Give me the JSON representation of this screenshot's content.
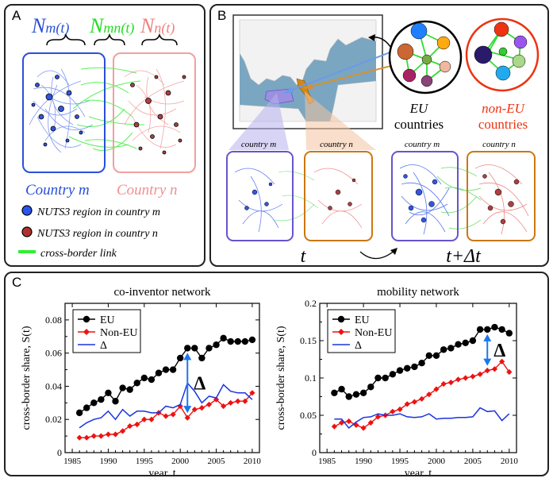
{
  "panel_a": {
    "label": "A",
    "nm": {
      "letter": "N",
      "sub": "m(t)"
    },
    "nmn": {
      "letter": "N",
      "sub": "mn(t)"
    },
    "nn": {
      "letter": "N",
      "sub": "n(t)"
    },
    "country_m": "Country m",
    "country_n": "Country n",
    "legend": {
      "region_m": "NUTS3 region in country m",
      "region_n": "NUTS3 region in country n",
      "cross_link": "cross-border link"
    },
    "colors": {
      "blue": "#2a50d8",
      "red": "#e87878",
      "green": "#33ee33"
    }
  },
  "panel_b": {
    "label": "B",
    "eu_caption_1": "EU",
    "eu_caption_2": "countries",
    "noneu_caption_1": "non-EU",
    "noneu_caption_2": "countries",
    "country_m": "country m",
    "country_n": "country n",
    "time_t": "t",
    "time_t2": "t+Δt"
  },
  "panel_c": {
    "label": "C",
    "delta_marker": "Δ",
    "charts": [
      {
        "title": "co-inventor network",
        "xlabel": "year, t",
        "ylabel": "cross-border share, S(t)",
        "ylim": [
          0,
          0.09
        ],
        "yticks": [
          "0",
          "0.02",
          "0.04",
          "0.06",
          "0.08"
        ],
        "xticks": [
          "1985",
          "1990",
          "1995",
          "2000",
          "2005",
          "2010"
        ],
        "legend": [
          "EU",
          "Non-EU",
          "Δ"
        ],
        "delta_year": 2001
      },
      {
        "title": "mobility network",
        "xlabel": "year, t",
        "ylabel": "cross-border share, S(t)",
        "ylim": [
          0,
          0.2
        ],
        "yticks": [
          "0",
          "0.05",
          "0.1",
          "0.15",
          "0.2"
        ],
        "xticks": [
          "1985",
          "1990",
          "1995",
          "2000",
          "2005",
          "2010"
        ],
        "legend": [
          "EU",
          "Non-EU",
          "Δ"
        ],
        "delta_year": 2007
      }
    ]
  },
  "chart_data": [
    {
      "type": "line",
      "title": "co-inventor network",
      "xlabel": "year, t",
      "ylabel": "cross-border share, S(t)",
      "xlim": [
        1984,
        2011
      ],
      "ylim": [
        0,
        0.09
      ],
      "x": [
        1986,
        1987,
        1988,
        1989,
        1990,
        1991,
        1992,
        1993,
        1994,
        1995,
        1996,
        1997,
        1998,
        1999,
        2000,
        2001,
        2002,
        2003,
        2004,
        2005,
        2006,
        2007,
        2008,
        2009,
        2010
      ],
      "series": [
        {
          "name": "EU",
          "color": "#000000",
          "values": [
            0.024,
            0.027,
            0.03,
            0.032,
            0.036,
            0.031,
            0.039,
            0.038,
            0.042,
            0.045,
            0.044,
            0.048,
            0.05,
            0.05,
            0.057,
            0.063,
            0.063,
            0.057,
            0.063,
            0.065,
            0.069,
            0.067,
            0.067,
            0.067,
            0.068
          ]
        },
        {
          "name": "Non-EU",
          "color": "#ee1111",
          "values": [
            0.009,
            0.009,
            0.01,
            0.01,
            0.011,
            0.011,
            0.013,
            0.016,
            0.017,
            0.02,
            0.02,
            0.024,
            0.022,
            0.023,
            0.028,
            0.021,
            0.026,
            0.027,
            0.029,
            0.032,
            0.028,
            0.03,
            0.031,
            0.031,
            0.036
          ]
        },
        {
          "name": "Δ",
          "color": "#1a33dd",
          "values": [
            0.015,
            0.018,
            0.02,
            0.021,
            0.025,
            0.02,
            0.026,
            0.022,
            0.025,
            0.025,
            0.024,
            0.024,
            0.028,
            0.027,
            0.029,
            0.042,
            0.037,
            0.03,
            0.034,
            0.033,
            0.041,
            0.037,
            0.036,
            0.036,
            0.032
          ]
        }
      ],
      "annotations": [
        {
          "text": "Δ",
          "x": 2001
        }
      ]
    },
    {
      "type": "line",
      "title": "mobility network",
      "xlabel": "year, t",
      "ylabel": "cross-border share, S(t)",
      "xlim": [
        1984,
        2011
      ],
      "ylim": [
        0,
        0.2
      ],
      "x": [
        1986,
        1987,
        1988,
        1989,
        1990,
        1991,
        1992,
        1993,
        1994,
        1995,
        1996,
        1997,
        1998,
        1999,
        2000,
        2001,
        2002,
        2003,
        2004,
        2005,
        2006,
        2007,
        2008,
        2009,
        2010
      ],
      "series": [
        {
          "name": "EU",
          "color": "#000000",
          "values": [
            0.08,
            0.085,
            0.075,
            0.078,
            0.08,
            0.088,
            0.1,
            0.1,
            0.105,
            0.11,
            0.113,
            0.115,
            0.12,
            0.13,
            0.13,
            0.138,
            0.14,
            0.145,
            0.147,
            0.15,
            0.165,
            0.165,
            0.168,
            0.165,
            0.16
          ]
        },
        {
          "name": "Non-EU",
          "color": "#ee1111",
          "values": [
            0.035,
            0.04,
            0.042,
            0.037,
            0.033,
            0.04,
            0.048,
            0.05,
            0.055,
            0.058,
            0.065,
            0.068,
            0.072,
            0.078,
            0.085,
            0.092,
            0.094,
            0.098,
            0.1,
            0.102,
            0.105,
            0.11,
            0.112,
            0.122,
            0.108
          ]
        },
        {
          "name": "Δ",
          "color": "#1a33dd",
          "values": [
            0.045,
            0.045,
            0.033,
            0.041,
            0.047,
            0.048,
            0.052,
            0.05,
            0.05,
            0.052,
            0.048,
            0.047,
            0.048,
            0.052,
            0.045,
            0.046,
            0.046,
            0.047,
            0.047,
            0.048,
            0.06,
            0.055,
            0.056,
            0.043,
            0.052
          ]
        }
      ],
      "annotations": [
        {
          "text": "Δ",
          "x": 2007
        }
      ]
    }
  ]
}
